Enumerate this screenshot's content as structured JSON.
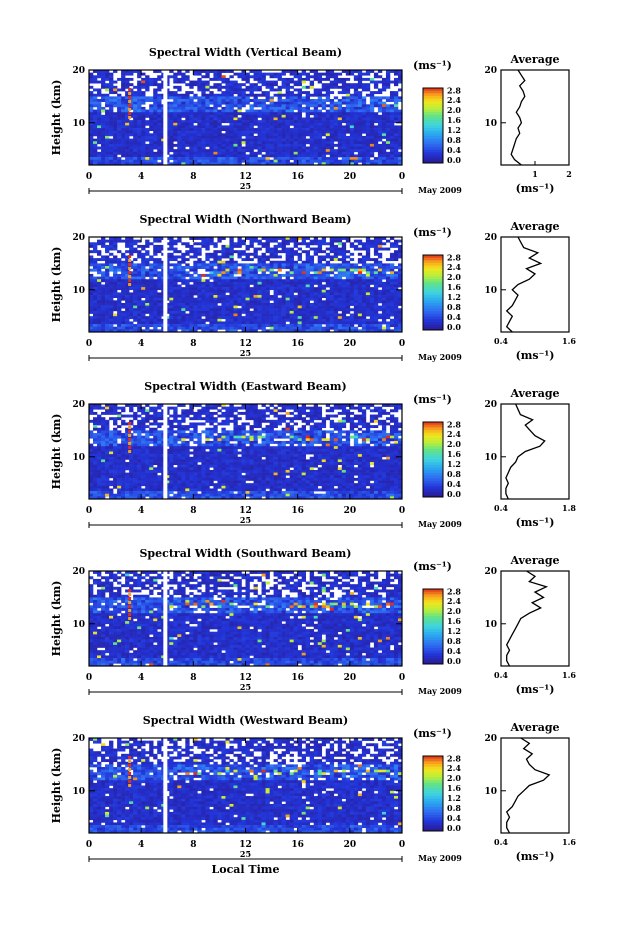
{
  "chart_data": [
    {
      "type": "heatmap",
      "title": "Spectral Width (Vertical Beam)",
      "ylabel": "Height (km)",
      "y_ticks": [
        "20",
        "10"
      ],
      "x_ticks": [
        "0",
        "4",
        "8",
        "12",
        "16",
        "20",
        "0"
      ],
      "date_day": "25",
      "date_month": "May 2009",
      "colorbar": {
        "unit": "(ms⁻¹)",
        "ticks": [
          "2.8",
          "2.4",
          "2.0",
          "1.6",
          "1.2",
          "0.8",
          "0.4",
          "0.0"
        ]
      },
      "xlim": [
        0,
        24
      ],
      "ylim": [
        2,
        20
      ],
      "profile": {
        "title": "Average",
        "xlabel": "(ms⁻¹)",
        "x_ticks": [
          "1",
          "2"
        ],
        "y_ticks": [
          "20",
          "10"
        ],
        "xlim": [
          0,
          2
        ],
        "ylim": [
          2,
          20
        ],
        "height": [
          2,
          3,
          4,
          5,
          6,
          7,
          8,
          9,
          10,
          11,
          12,
          13,
          14,
          15,
          16,
          17,
          18,
          19,
          20
        ],
        "width": [
          0.6,
          0.4,
          0.3,
          0.35,
          0.4,
          0.45,
          0.55,
          0.5,
          0.6,
          0.55,
          0.45,
          0.55,
          0.6,
          0.7,
          0.65,
          0.55,
          0.7,
          0.6,
          0.5
        ]
      }
    },
    {
      "type": "heatmap",
      "title": "Spectral Width (Northward Beam)",
      "ylabel": "Height (km)",
      "y_ticks": [
        "20",
        "10"
      ],
      "x_ticks": [
        "0",
        "4",
        "8",
        "12",
        "16",
        "20",
        "0"
      ],
      "date_day": "25",
      "date_month": "May 2009",
      "colorbar": {
        "unit": "(ms⁻¹)",
        "ticks": [
          "2.8",
          "2.4",
          "2.0",
          "1.6",
          "1.2",
          "0.8",
          "0.4",
          "0.0"
        ]
      },
      "xlim": [
        0,
        24
      ],
      "ylim": [
        2,
        20
      ],
      "profile": {
        "title": "Average",
        "xlabel": "(ms⁻¹)",
        "x_ticks": [
          "0.4",
          "1.6"
        ],
        "y_ticks": [
          "20",
          "10"
        ],
        "xlim": [
          0.4,
          1.6
        ],
        "ylim": [
          2,
          20
        ],
        "height": [
          2,
          3,
          4,
          5,
          6,
          7,
          8,
          9,
          10,
          11,
          12,
          13,
          14,
          15,
          16,
          17,
          18,
          19,
          20
        ],
        "width": [
          0.6,
          0.5,
          0.55,
          0.6,
          0.5,
          0.6,
          0.65,
          0.7,
          0.6,
          0.7,
          0.9,
          1.0,
          0.85,
          1.1,
          0.9,
          1.05,
          0.8,
          0.75,
          0.7
        ]
      }
    },
    {
      "type": "heatmap",
      "title": "Spectral Width (Eastward Beam)",
      "ylabel": "Height (km)",
      "y_ticks": [
        "20",
        "10"
      ],
      "x_ticks": [
        "0",
        "4",
        "8",
        "12",
        "16",
        "20",
        "0"
      ],
      "date_day": "25",
      "date_month": "May 2009",
      "colorbar": {
        "unit": "(ms⁻¹)",
        "ticks": [
          "2.8",
          "2.4",
          "2.0",
          "1.6",
          "1.2",
          "0.8",
          "0.4",
          "0.0"
        ]
      },
      "xlim": [
        0,
        24
      ],
      "ylim": [
        2,
        20
      ],
      "profile": {
        "title": "Average",
        "xlabel": "(ms⁻¹)",
        "x_ticks": [
          "0.4",
          "1.8"
        ],
        "y_ticks": [
          "20",
          "10"
        ],
        "xlim": [
          0.4,
          1.8
        ],
        "ylim": [
          2,
          20
        ],
        "height": [
          2,
          3,
          4,
          5,
          6,
          7,
          8,
          9,
          10,
          11,
          12,
          13,
          14,
          15,
          16,
          17,
          18,
          19,
          20
        ],
        "width": [
          0.55,
          0.5,
          0.5,
          0.55,
          0.5,
          0.55,
          0.6,
          0.7,
          0.75,
          0.9,
          1.2,
          1.3,
          1.1,
          1.0,
          0.9,
          1.05,
          0.8,
          0.75,
          0.7
        ]
      }
    },
    {
      "type": "heatmap",
      "title": "Spectral Width (Southward Beam)",
      "ylabel": "Height (km)",
      "y_ticks": [
        "20",
        "10"
      ],
      "x_ticks": [
        "0",
        "4",
        "8",
        "12",
        "16",
        "20",
        "0"
      ],
      "date_day": "25",
      "date_month": "May 2009",
      "colorbar": {
        "unit": "(ms⁻¹)",
        "ticks": [
          "2.8",
          "2.4",
          "2.0",
          "1.6",
          "1.2",
          "0.8",
          "0.4",
          "0.0"
        ]
      },
      "xlim": [
        0,
        24
      ],
      "ylim": [
        2,
        20
      ],
      "profile": {
        "title": "Average",
        "xlabel": "(ms⁻¹)",
        "x_ticks": [
          "0.4",
          "1.6"
        ],
        "y_ticks": [
          "20",
          "10"
        ],
        "xlim": [
          0.4,
          1.6
        ],
        "ylim": [
          2,
          20
        ],
        "height": [
          2,
          3,
          4,
          5,
          6,
          7,
          8,
          9,
          10,
          11,
          12,
          13,
          14,
          15,
          16,
          17,
          18,
          19,
          20
        ],
        "width": [
          0.55,
          0.5,
          0.5,
          0.55,
          0.5,
          0.55,
          0.6,
          0.65,
          0.7,
          0.75,
          0.9,
          1.1,
          0.95,
          1.15,
          1.0,
          1.2,
          0.9,
          1.0,
          0.85
        ]
      }
    },
    {
      "type": "heatmap",
      "title": "Spectral Width (Westward Beam)",
      "ylabel": "Height (km)",
      "y_ticks": [
        "20",
        "10"
      ],
      "x_ticks": [
        "0",
        "4",
        "8",
        "12",
        "16",
        "20",
        "0"
      ],
      "date_day": "25",
      "date_month": "May 2009",
      "xlabel": "Local Time",
      "colorbar": {
        "unit": "(ms⁻¹)",
        "ticks": [
          "2.8",
          "2.4",
          "2.0",
          "1.6",
          "1.2",
          "0.8",
          "0.4",
          "0.0"
        ]
      },
      "xlim": [
        0,
        24
      ],
      "ylim": [
        2,
        20
      ],
      "profile": {
        "title": "Average",
        "xlabel": "(ms⁻¹)",
        "x_ticks": [
          "0.4",
          "1.6"
        ],
        "y_ticks": [
          "20",
          "10"
        ],
        "xlim": [
          0.4,
          1.6
        ],
        "ylim": [
          2,
          20
        ],
        "height": [
          2,
          3,
          4,
          5,
          6,
          7,
          8,
          9,
          10,
          11,
          12,
          13,
          14,
          15,
          16,
          17,
          18,
          19,
          20
        ],
        "width": [
          0.55,
          0.5,
          0.5,
          0.55,
          0.5,
          0.6,
          0.65,
          0.7,
          0.8,
          0.9,
          1.15,
          1.25,
          1.0,
          0.9,
          0.85,
          0.95,
          0.8,
          0.9,
          0.75
        ]
      }
    }
  ]
}
